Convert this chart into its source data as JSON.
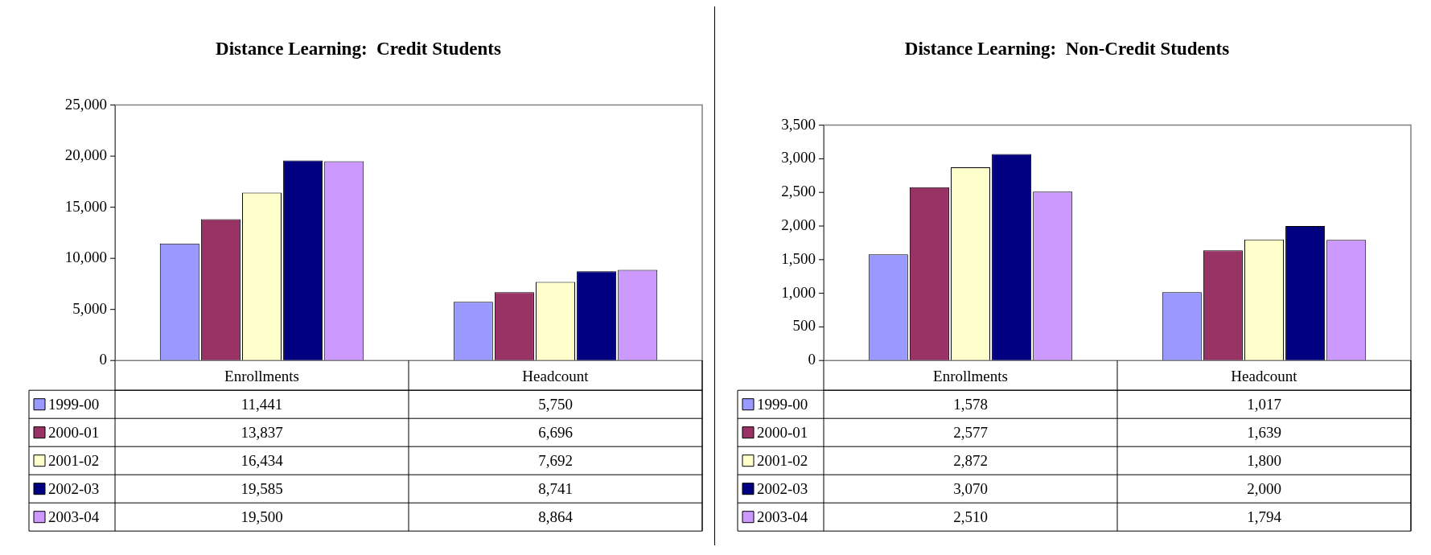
{
  "chart_data": [
    {
      "type": "bar",
      "title": "Distance Learning:  Credit Students",
      "categories": [
        "Enrollments",
        "Headcount"
      ],
      "legend": "bottom left",
      "series": [
        {
          "name": "1999-00",
          "color": "#9999ff",
          "values": [
            11441,
            5750
          ],
          "value_labels": [
            "11,441",
            "5,750"
          ]
        },
        {
          "name": "2000-01",
          "color": "#993366",
          "values": [
            13837,
            6696
          ],
          "value_labels": [
            "13,837",
            "6,696"
          ]
        },
        {
          "name": "2001-02",
          "color": "#ffffcc",
          "values": [
            16434,
            7692
          ],
          "value_labels": [
            "16,434",
            "7,692"
          ]
        },
        {
          "name": "2002-03",
          "color": "#000080",
          "values": [
            19585,
            8741
          ],
          "value_labels": [
            "19,585",
            "8,741"
          ]
        },
        {
          "name": "2003-04",
          "color": "#cc99ff",
          "values": [
            19500,
            8864
          ],
          "value_labels": [
            "19,500",
            "8,864"
          ]
        }
      ],
      "ylim": [
        0,
        25000
      ],
      "yticks": [
        {
          "value": 0,
          "label": "0"
        },
        {
          "value": 5000,
          "label": "5,000"
        },
        {
          "value": 10000,
          "label": "10,000"
        },
        {
          "value": 15000,
          "label": "15,000"
        },
        {
          "value": 20000,
          "label": "20,000"
        },
        {
          "value": 25000,
          "label": "25,000"
        }
      ]
    },
    {
      "type": "bar",
      "title": "Distance Learning:  Non-Credit Students",
      "categories": [
        "Enrollments",
        "Headcount"
      ],
      "legend": "bottom left",
      "series": [
        {
          "name": "1999-00",
          "color": "#9999ff",
          "values": [
            1578,
            1017
          ],
          "value_labels": [
            "1,578",
            "1,017"
          ]
        },
        {
          "name": "2000-01",
          "color": "#993366",
          "values": [
            2577,
            1639
          ],
          "value_labels": [
            "2,577",
            "1,639"
          ]
        },
        {
          "name": "2001-02",
          "color": "#ffffcc",
          "values": [
            2872,
            1800
          ],
          "value_labels": [
            "2,872",
            "1,800"
          ]
        },
        {
          "name": "2002-03",
          "color": "#000080",
          "values": [
            3070,
            2000
          ],
          "value_labels": [
            "3,070",
            "2,000"
          ]
        },
        {
          "name": "2003-04",
          "color": "#cc99ff",
          "values": [
            2510,
            1794
          ],
          "value_labels": [
            "2,510",
            "1,794"
          ]
        }
      ],
      "ylim": [
        0,
        3500
      ],
      "yticks": [
        {
          "value": 0,
          "label": "0"
        },
        {
          "value": 500,
          "label": "500"
        },
        {
          "value": 1000,
          "label": "1,000"
        },
        {
          "value": 1500,
          "label": "1,500"
        },
        {
          "value": 2000,
          "label": "2,000"
        },
        {
          "value": 2500,
          "label": "2,500"
        },
        {
          "value": 3000,
          "label": "3,000"
        },
        {
          "value": 3500,
          "label": "3,500"
        }
      ]
    }
  ]
}
